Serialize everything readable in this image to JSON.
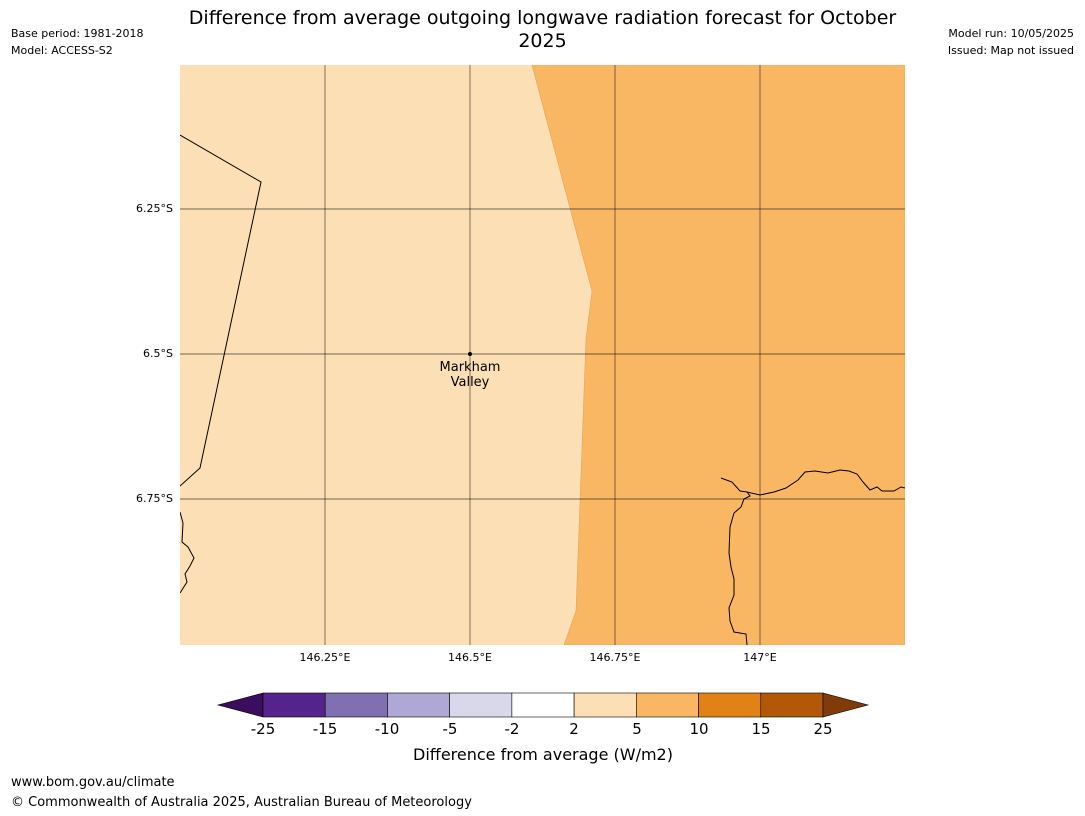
{
  "title": "Difference from average outgoing longwave radiation forecast for October 2025",
  "meta_left": {
    "base_period": "Base period: 1981-2018",
    "model": "Model: ACCESS-S2"
  },
  "meta_right": {
    "model_run": "Model run: 10/05/2025",
    "issued": "Issued: Map not issued"
  },
  "map": {
    "lat_labels": [
      "6.25°S",
      "6.5°S",
      "6.75°S"
    ],
    "lon_labels": [
      "146.25°E",
      "146.5°E",
      "146.75°E",
      "147°E"
    ],
    "place": {
      "name_line1": "Markham",
      "name_line2": "Valley"
    },
    "zones": [
      {
        "category": "2 to 5",
        "color": "#fddfb5"
      },
      {
        "category": "5 to 10",
        "color": "#f9b764"
      }
    ]
  },
  "colorbar": {
    "label": "Difference from average (W/m2)",
    "ticks": [
      "-25",
      "-15",
      "-10",
      "-5",
      "-2",
      "2",
      "5",
      "10",
      "15",
      "25"
    ],
    "colors": [
      "#3a0d5e",
      "#55238c",
      "#8170b1",
      "#b0a8d4",
      "#d8d8ea",
      "#ffffff",
      "#fddfb5",
      "#f9b764",
      "#e08214",
      "#b35806",
      "#7f3b08"
    ]
  },
  "footer": {
    "url": "www.bom.gov.au/climate",
    "copyright": "© Commonwealth of Australia 2025, Australian Bureau of Meteorology"
  }
}
